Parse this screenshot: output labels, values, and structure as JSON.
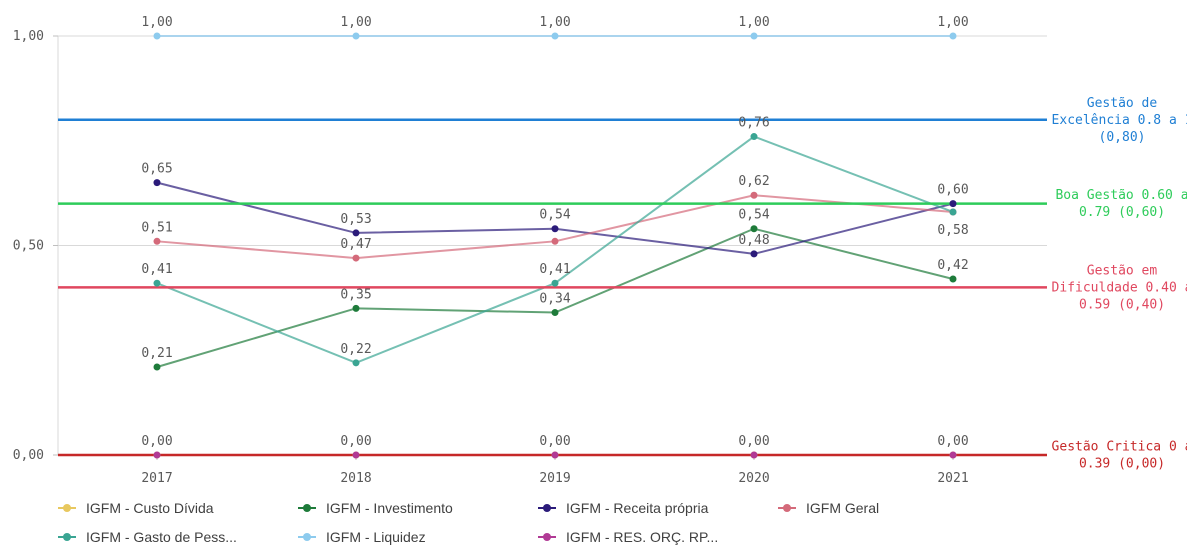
{
  "chart_data": {
    "type": "line",
    "categories": [
      "2017",
      "2018",
      "2019",
      "2020",
      "2021"
    ],
    "y_ticks": [
      "0,00",
      "0,50",
      "1,00"
    ],
    "ylim": [
      0,
      1
    ],
    "grid": true,
    "legend_position": "bottom",
    "series": [
      {
        "name": "IGFM - Custo Dívida",
        "color": "#e8c85f",
        "values": [
          0,
          0,
          0,
          0,
          0
        ],
        "labels": [
          "",
          "",
          "",
          "",
          ""
        ]
      },
      {
        "name": "IGFM - Investimento",
        "color": "#1e7b3a",
        "values": [
          0.21,
          0.35,
          0.34,
          0.54,
          0.42
        ],
        "labels": [
          "0,21",
          "0,35",
          "0,34",
          "0,54",
          "0,42"
        ]
      },
      {
        "name": "IGFM - Receita própria",
        "color": "#2b1b7a",
        "values": [
          0.65,
          0.53,
          0.54,
          0.48,
          0.6
        ],
        "labels": [
          "0,65",
          "0,53",
          "0,54",
          "0,48",
          "0,60"
        ]
      },
      {
        "name": "IGFM Geral",
        "color": "#d46a7a",
        "values": [
          0.51,
          0.47,
          0.51,
          0.62,
          0.58
        ],
        "labels": [
          "0,51",
          "0,47",
          "",
          "0,62",
          "0,58"
        ]
      },
      {
        "name": "IGFM - Gasto de Pess...",
        "color": "#3aa593",
        "values": [
          0.41,
          0.22,
          0.41,
          0.76,
          0.58
        ],
        "labels": [
          "0,41",
          "0,22",
          "0,41",
          "0,76",
          ""
        ]
      },
      {
        "name": "IGFM - Liquidez",
        "color": "#8dcbee",
        "values": [
          1,
          1,
          1,
          1,
          1
        ],
        "labels": [
          "1,00",
          "1,00",
          "1,00",
          "1,00",
          "1,00"
        ]
      },
      {
        "name": "IGFM - RES. ORÇ. RP...",
        "color": "#b13a95",
        "values": [
          0,
          0,
          0,
          0,
          0
        ],
        "labels": [
          "0,00",
          "0,00",
          "0,00",
          "0,00",
          "0,00"
        ]
      }
    ],
    "reference_lines": [
      {
        "value": 0.8,
        "color": "#1f7fd4",
        "label_lines": [
          "Gestão de",
          "Excelência 0.8 a 1",
          "(0,80)"
        ]
      },
      {
        "value": 0.6,
        "color": "#2ecc5a",
        "label_lines": [
          "Boa Gestão 0.60 a",
          "0.79 (0,60)"
        ]
      },
      {
        "value": 0.4,
        "color": "#e0475f",
        "label_lines": [
          "Gestão em",
          "Dificuldade 0.40 a",
          "0.59 (0,40)"
        ]
      },
      {
        "value": 0.0,
        "color": "#c62828",
        "label_lines": [
          "Gestão Critica 0 a",
          "0.39 (0,00)"
        ]
      }
    ]
  }
}
